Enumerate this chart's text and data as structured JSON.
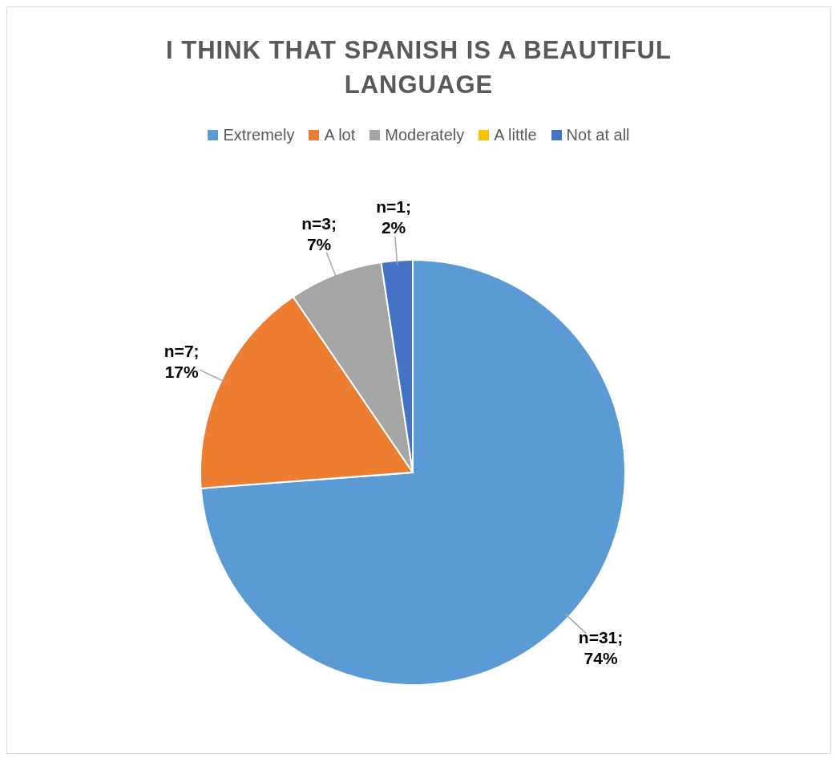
{
  "chart_data": {
    "type": "pie",
    "title": "I THINK THAT SPANISH IS A BEAUTIFUL LANGUAGE",
    "categories": [
      "Extremely",
      "A lot",
      "Moderately",
      "A little",
      "Not at all"
    ],
    "values": [
      31,
      7,
      3,
      0,
      1
    ],
    "colors": [
      "#5b9bd5",
      "#ed7d31",
      "#a5a5a5",
      "#ffc000",
      "#4472c4"
    ],
    "value_labels": [
      "n=31; 74%",
      "n=7; 17%",
      "n=3; 7%",
      null,
      "n=1; 2%"
    ],
    "legend": "top"
  }
}
